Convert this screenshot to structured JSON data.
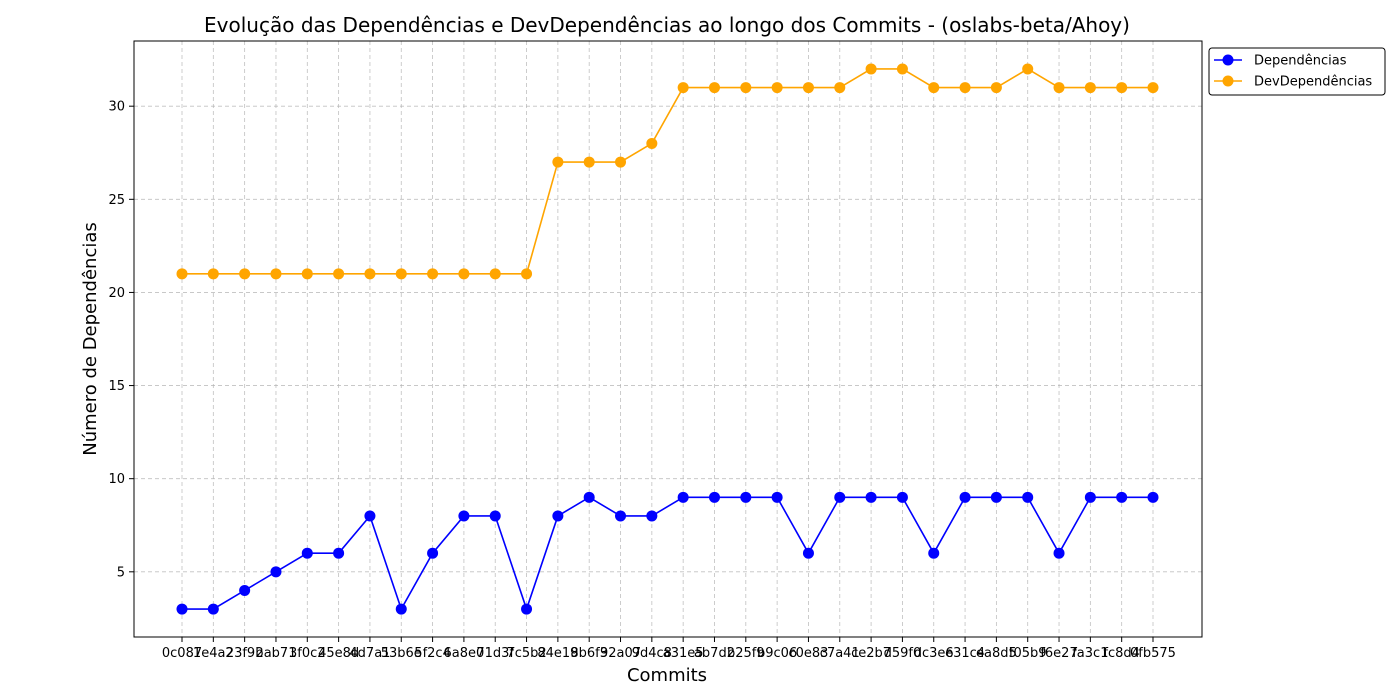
{
  "chart_data": {
    "type": "line",
    "title": "Evolução das Dependências e DevDependências ao longo dos Commits - (oslabs-beta/Ahoy)",
    "xlabel": "Commits",
    "ylabel": "Número de Dependências",
    "ylim": [
      1.5,
      33.5
    ],
    "yticks": [
      5,
      10,
      15,
      20,
      25,
      30
    ],
    "grid": true,
    "legend_position": "outside-top-right",
    "x": [
      "0c087",
      "1e4a2",
      "23f9b",
      "2ab71",
      "3f0c2",
      "45e8d",
      "4d7a1",
      "53b6e",
      "5f2c4",
      "6a8e0",
      "71d3f",
      "7c5b2",
      "84e19",
      "8b6f3",
      "92a07",
      "9d4c8",
      "a31e5",
      "ab7d2",
      "b25f9",
      "b9c06",
      "c0e83",
      "c7a41",
      "ce2b7",
      "d59f0",
      "dc3e6",
      "e31c4",
      "ea8d5",
      "f05b9",
      "f6e27",
      "fa3c1",
      "fc8d4",
      "0fb575"
    ],
    "series": [
      {
        "name": "Dependências",
        "color": "#0000ff",
        "values": [
          3,
          3,
          4,
          5,
          6,
          6,
          8,
          3,
          6,
          8,
          8,
          3,
          8,
          9,
          8,
          8,
          9,
          9,
          9,
          9,
          6,
          9,
          9,
          9,
          6,
          9,
          9,
          9,
          6,
          9,
          9,
          9
        ]
      },
      {
        "name": "DevDependências",
        "color": "#ffa500",
        "values": [
          21,
          21,
          21,
          21,
          21,
          21,
          21,
          21,
          21,
          21,
          21,
          21,
          27,
          27,
          27,
          28,
          31,
          31,
          31,
          31,
          31,
          31,
          32,
          32,
          31,
          31,
          31,
          32,
          31,
          31,
          31,
          31
        ]
      }
    ]
  }
}
